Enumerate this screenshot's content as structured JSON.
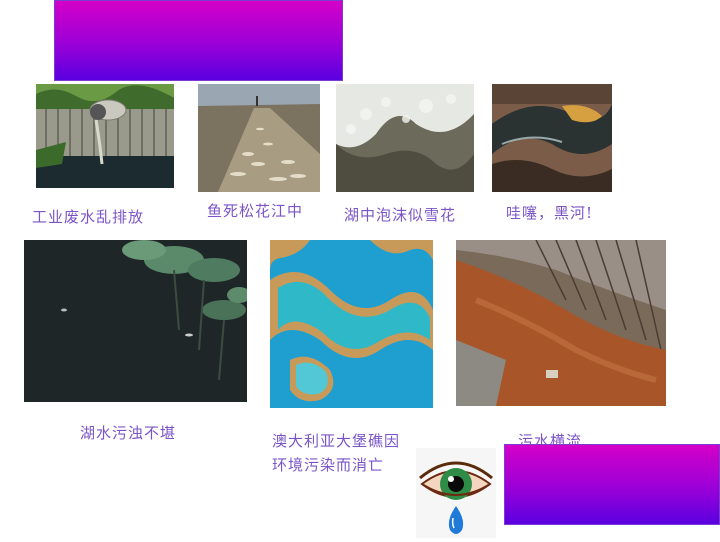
{
  "captions": {
    "industrial_waste": "工业废水乱排放",
    "dead_fish": "鱼死松花江中",
    "lake_foam": "湖中泡沫似雪花",
    "black_river": "哇噻，黑河!",
    "murky_lake": "湖水污浊不堪",
    "reef_line1": "澳大利亚大堡礁因",
    "reef_line2": "环境污染而消亡",
    "sewage": "污水横流"
  },
  "icons": {
    "weeping_eye": "crying-eye-icon"
  },
  "colors": {
    "banner_top": "#d400c8",
    "banner_bottom": "#5a00e0",
    "caption_text": "#7a55c8"
  }
}
